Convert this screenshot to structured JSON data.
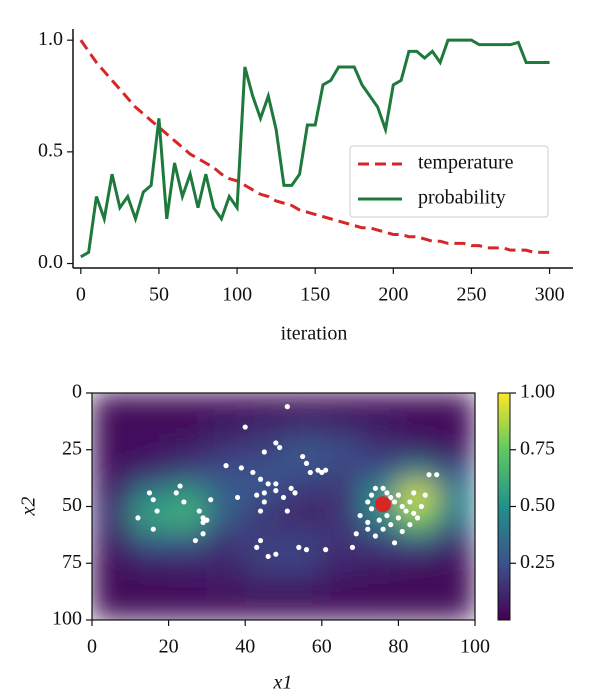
{
  "chart_data": [
    {
      "type": "line",
      "xlabel": "iteration",
      "x": [
        0,
        5,
        10,
        15,
        20,
        25,
        30,
        35,
        40,
        45,
        50,
        55,
        60,
        65,
        70,
        75,
        80,
        85,
        90,
        95,
        100,
        105,
        110,
        115,
        120,
        125,
        130,
        135,
        140,
        145,
        150,
        155,
        160,
        165,
        170,
        175,
        180,
        185,
        190,
        195,
        200,
        205,
        210,
        215,
        220,
        225,
        230,
        235,
        240,
        245,
        250,
        255,
        260,
        265,
        270,
        275,
        280,
        285,
        290,
        295,
        300
      ],
      "series": [
        {
          "name": "temperature",
          "color": "#d62728",
          "linestyle": "dashed",
          "values": [
            1.0,
            0.95,
            0.9,
            0.86,
            0.82,
            0.78,
            0.74,
            0.7,
            0.67,
            0.64,
            0.61,
            0.58,
            0.55,
            0.52,
            0.49,
            0.47,
            0.45,
            0.43,
            0.4,
            0.38,
            0.37,
            0.35,
            0.33,
            0.31,
            0.3,
            0.28,
            0.27,
            0.26,
            0.24,
            0.23,
            0.22,
            0.21,
            0.2,
            0.19,
            0.18,
            0.17,
            0.16,
            0.16,
            0.15,
            0.14,
            0.13,
            0.13,
            0.12,
            0.12,
            0.11,
            0.1,
            0.1,
            0.09,
            0.09,
            0.09,
            0.08,
            0.08,
            0.07,
            0.07,
            0.07,
            0.06,
            0.06,
            0.06,
            0.05,
            0.05,
            0.05
          ]
        },
        {
          "name": "probability",
          "color": "#1e7a3c",
          "linestyle": "solid",
          "values": [
            0.03,
            0.05,
            0.3,
            0.2,
            0.4,
            0.25,
            0.3,
            0.2,
            0.32,
            0.35,
            0.65,
            0.2,
            0.45,
            0.3,
            0.4,
            0.25,
            0.4,
            0.25,
            0.2,
            0.3,
            0.25,
            0.88,
            0.75,
            0.65,
            0.75,
            0.6,
            0.35,
            0.35,
            0.4,
            0.62,
            0.62,
            0.8,
            0.82,
            0.88,
            0.88,
            0.88,
            0.8,
            0.75,
            0.7,
            0.6,
            0.8,
            0.82,
            0.95,
            0.95,
            0.92,
            0.95,
            0.9,
            1.0,
            1.0,
            1.0,
            1.0,
            0.98,
            0.98,
            0.98,
            0.98,
            0.98,
            0.99,
            0.9,
            0.9,
            0.9,
            0.9
          ]
        }
      ],
      "xlim": [
        -5,
        315
      ],
      "xticks": [
        0,
        50,
        100,
        150,
        200,
        250,
        300
      ],
      "ylim": [
        -0.02,
        1.05
      ],
      "yticks": [
        {
          "value": 0,
          "label": "0.0"
        },
        0.5,
        {
          "value": 1,
          "label": "1.0"
        }
      ],
      "legend": "right"
    },
    {
      "type": "heatmap",
      "xlabel": "x1",
      "ylabel": "x2",
      "xlim": [
        0,
        100
      ],
      "xticks": [
        0,
        20,
        40,
        60,
        80,
        100
      ],
      "ylim": [
        100,
        0
      ],
      "yticks": [
        0,
        25,
        50,
        75,
        100
      ],
      "colormap": "viridis",
      "clim": [
        0,
        1
      ],
      "cticks": [
        {
          "value": 1,
          "label": "1.00"
        },
        {
          "value": 0.75,
          "label": "0.75"
        },
        {
          "value": 0.5,
          "label": "0.50"
        },
        0.25
      ],
      "z": [
        [
          0.02,
          0.02,
          0.02,
          0.02,
          0.02,
          0.02,
          0.02,
          0.02,
          0.02,
          0.02
        ],
        [
          0.02,
          0.03,
          0.05,
          0.08,
          0.12,
          0.15,
          0.12,
          0.08,
          0.05,
          0.03
        ],
        [
          0.03,
          0.05,
          0.08,
          0.15,
          0.2,
          0.28,
          0.25,
          0.15,
          0.1,
          0.05
        ],
        [
          0.05,
          0.12,
          0.2,
          0.25,
          0.25,
          0.25,
          0.2,
          0.25,
          0.45,
          0.25
        ],
        [
          0.1,
          0.45,
          0.55,
          0.3,
          0.25,
          0.15,
          0.15,
          0.5,
          0.95,
          0.45
        ],
        [
          0.15,
          0.6,
          0.65,
          0.3,
          0.15,
          0.1,
          0.15,
          0.45,
          0.8,
          0.4
        ],
        [
          0.08,
          0.3,
          0.3,
          0.15,
          0.2,
          0.2,
          0.15,
          0.2,
          0.3,
          0.15
        ],
        [
          0.03,
          0.08,
          0.1,
          0.12,
          0.2,
          0.2,
          0.12,
          0.08,
          0.05,
          0.03
        ],
        [
          0.02,
          0.03,
          0.05,
          0.06,
          0.08,
          0.08,
          0.05,
          0.03,
          0.02,
          0.02
        ],
        [
          0.02,
          0.02,
          0.02,
          0.02,
          0.02,
          0.02,
          0.02,
          0.02,
          0.02,
          0.02
        ]
      ],
      "points": {
        "color": "#ffffff",
        "x": [
          15,
          16,
          12,
          17,
          22,
          24,
          23,
          16,
          28,
          29,
          29,
          30,
          29,
          27,
          31,
          40,
          51,
          45,
          48,
          49,
          55,
          56,
          57,
          59,
          60,
          61,
          35,
          39,
          42,
          44,
          46,
          48,
          48,
          52,
          53,
          50,
          43,
          45,
          45,
          38,
          44,
          51,
          44,
          43,
          46,
          48,
          54,
          56,
          61,
          68,
          70,
          72,
          72,
          69,
          73,
          74,
          76,
          77,
          78,
          79,
          80,
          81,
          82,
          83,
          84,
          85,
          86,
          80,
          78,
          76,
          75,
          77,
          73,
          74,
          79,
          81,
          83,
          87,
          88,
          90,
          84,
          72
        ],
        "y": [
          44,
          47,
          55,
          52,
          44,
          48,
          41,
          60,
          52,
          55,
          57,
          56,
          62,
          65,
          47,
          15,
          6,
          26,
          22,
          24,
          28,
          31,
          35,
          34,
          35,
          34,
          32,
          33,
          35,
          38,
          40,
          43,
          40,
          42,
          44,
          46,
          45,
          44,
          48,
          46,
          52,
          52,
          65,
          68,
          72,
          71,
          68,
          69,
          69,
          68,
          54,
          57,
          60,
          62,
          45,
          42,
          42,
          44,
          46,
          48,
          45,
          50,
          52,
          48,
          53,
          55,
          50,
          55,
          58,
          60,
          56,
          54,
          51,
          63,
          66,
          61,
          58,
          45,
          36,
          36,
          44,
          48
        ]
      },
      "highlight": {
        "color": "#d62728",
        "x": 76,
        "y": 49
      }
    }
  ]
}
